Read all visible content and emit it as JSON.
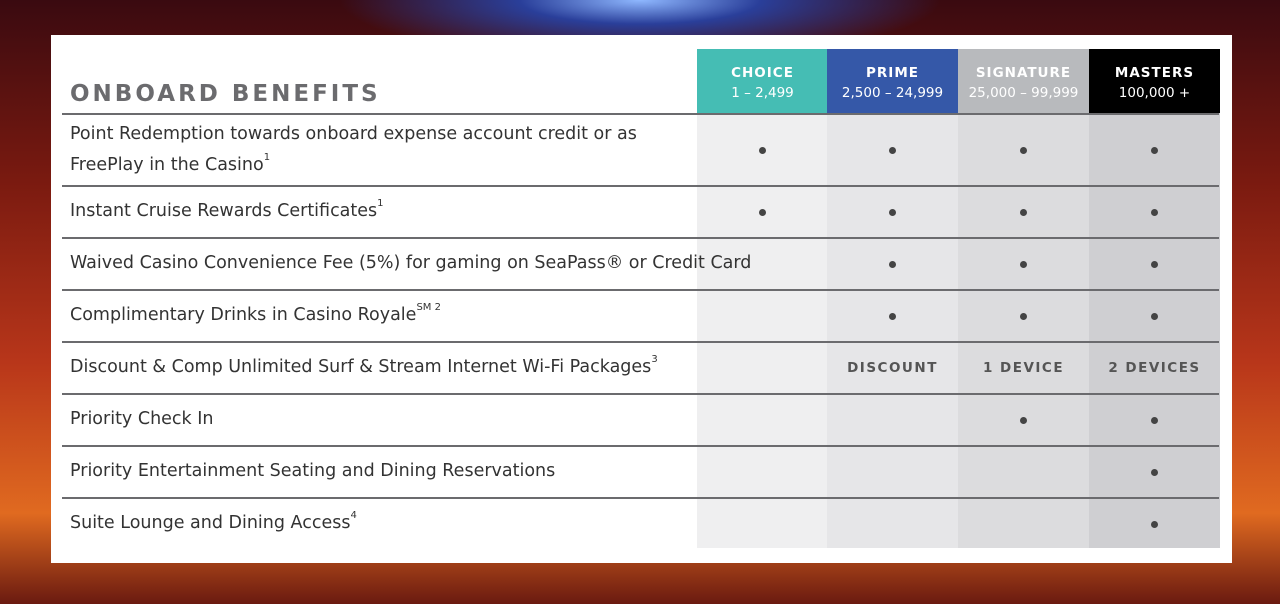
{
  "title": "ONBOARD BENEFITS",
  "colors": {
    "choice": "#45bdb4",
    "prime": "#3558a8",
    "signature": "#b8babd",
    "masters": "#000000"
  },
  "tiers": [
    {
      "name": "CHOICE",
      "range": "1 – 2,499"
    },
    {
      "name": "PRIME",
      "range": "2,500 – 24,999"
    },
    {
      "name": "SIGNATURE",
      "range": "25,000 – 99,999"
    },
    {
      "name": "MASTERS",
      "range": "100,000 +"
    }
  ],
  "rows": [
    {
      "label": "Point Redemption towards onboard expense account credit or as FreePlay in the Casino",
      "sup": "1",
      "cells": [
        "dot",
        "dot",
        "dot",
        "dot"
      ]
    },
    {
      "label": "Instant Cruise Rewards Certificates",
      "sup": "1",
      "cells": [
        "dot",
        "dot",
        "dot",
        "dot"
      ]
    },
    {
      "label": "Waived Casino Convenience Fee (5%) for gaming on SeaPass® or Credit Card",
      "sup": "",
      "cells": [
        "",
        "dot",
        "dot",
        "dot"
      ]
    },
    {
      "label": "Complimentary Drinks in Casino Royale",
      "sup": "SM 2",
      "cells": [
        "",
        "dot",
        "dot",
        "dot"
      ]
    },
    {
      "label": "Discount & Comp Unlimited Surf & Stream Internet Wi-Fi Packages",
      "sup": "3",
      "cells": [
        "",
        "DISCOUNT",
        "1 DEVICE",
        "2 DEVICES"
      ]
    },
    {
      "label": "Priority Check In",
      "sup": "",
      "cells": [
        "",
        "",
        "dot",
        "dot"
      ]
    },
    {
      "label": "Priority Entertainment Seating and Dining Reservations",
      "sup": "",
      "cells": [
        "",
        "",
        "",
        "dot"
      ]
    },
    {
      "label": "Suite Lounge and Dining Access",
      "sup": "4",
      "cells": [
        "",
        "",
        "",
        "dot"
      ]
    }
  ]
}
